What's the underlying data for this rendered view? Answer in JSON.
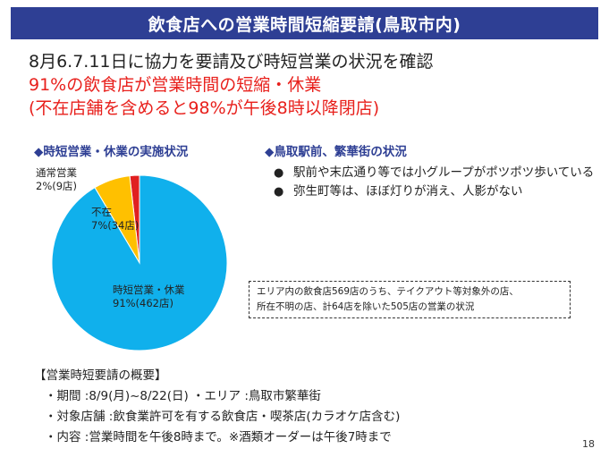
{
  "header": {
    "title": "飲食店への営業時間短縮要請(鳥取市内)"
  },
  "lead": {
    "line1": "8月6.7.11日に協力を要請及び時短営業の状況を確認",
    "line2": "91%の飲食店が営業時間の短縮・休業",
    "line3": "(不在店舗を含めると98%が午後8時以降閉店)"
  },
  "left_section": {
    "title": "◆時短営業・休業の実施状況"
  },
  "right_section": {
    "title": "◆鳥取駅前、繁華街の状況"
  },
  "pie": {
    "slices": [
      {
        "label": "時短営業・休業",
        "value_text": "91%(462店)",
        "percent": 91,
        "count": 462,
        "color": "#10b0ec"
      },
      {
        "label": "不在",
        "value_text": "7%(34店)",
        "percent": 7,
        "count": 34,
        "color": "#ffc000"
      },
      {
        "label": "通常営業",
        "value_text": "2%(9店)",
        "percent": 2,
        "count": 9,
        "color": "#e02020"
      }
    ]
  },
  "bullets": [
    "駅前や末広通り等では小グループがポツポツ歩いている",
    "弥生町等は、ほぼ灯りが消え、人影がない"
  ],
  "note": {
    "line1": "エリア内の飲食店569店のうち、テイクアウト等対象外の店、",
    "line2": "所在不明の店、計64店を除いた505店の営業の状況"
  },
  "summary": {
    "title": "【営業時短要請の概要】",
    "period": "・期間 :8/9(月)~8/22(日) ・エリア :鳥取市繁華街",
    "target": "・対象店舗 :飲食業許可を有する飲食店・喫茶店(カラオケ店含む)",
    "content": "・内容 :営業時間を午後8時まで。※酒類オーダーは午後7時まで"
  },
  "page": {
    "number": "18"
  }
}
